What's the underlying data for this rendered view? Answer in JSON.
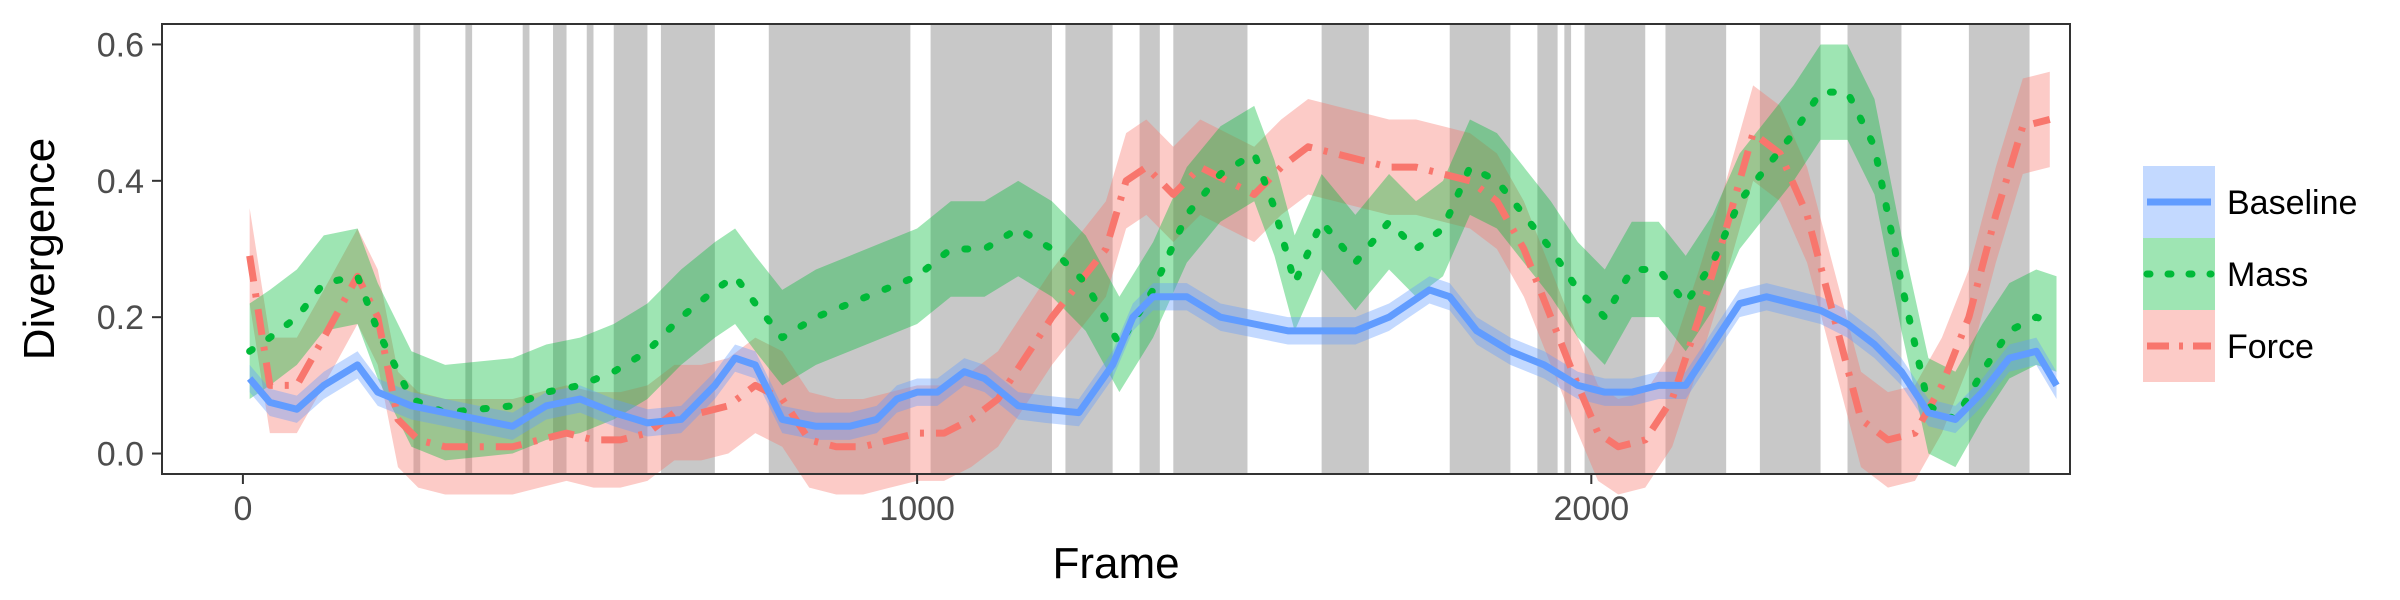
{
  "chart_data": {
    "type": "line",
    "title": "",
    "xlabel": "Frame",
    "ylabel": "Divergence",
    "xlim": [
      -120,
      2710
    ],
    "ylim": [
      -0.03,
      0.63
    ],
    "xticks": [
      0,
      1000,
      2000
    ],
    "xtick_labels": [
      "0",
      "1000",
      "2000"
    ],
    "yticks": [
      0.0,
      0.2,
      0.4,
      0.6
    ],
    "ytick_labels": [
      "0.0",
      "0.2",
      "0.4",
      "0.6"
    ],
    "grid": false,
    "legend_position": "right",
    "shaded_intervals": [
      [
        253,
        263
      ],
      [
        330,
        340
      ],
      [
        415,
        425
      ],
      [
        460,
        480
      ],
      [
        510,
        520
      ],
      [
        550,
        600
      ],
      [
        620,
        700
      ],
      [
        780,
        990
      ],
      [
        1020,
        1200
      ],
      [
        1220,
        1290
      ],
      [
        1330,
        1360
      ],
      [
        1380,
        1490
      ],
      [
        1600,
        1670
      ],
      [
        1790,
        1880
      ],
      [
        1920,
        1950
      ],
      [
        1960,
        1970
      ],
      [
        1990,
        2080
      ],
      [
        2110,
        2200
      ],
      [
        2250,
        2340
      ],
      [
        2380,
        2460
      ],
      [
        2560,
        2650
      ]
    ],
    "series": [
      {
        "name": "Baseline",
        "color": "#619CFF",
        "band_color": "#619CFF",
        "line_style": "solid",
        "x": [
          10,
          40,
          80,
          120,
          170,
          200,
          250,
          300,
          350,
          400,
          450,
          500,
          550,
          600,
          650,
          700,
          730,
          760,
          800,
          850,
          900,
          940,
          970,
          1000,
          1030,
          1070,
          1100,
          1150,
          1190,
          1240,
          1290,
          1320,
          1350,
          1400,
          1450,
          1500,
          1550,
          1600,
          1650,
          1700,
          1730,
          1760,
          1790,
          1830,
          1880,
          1930,
          1980,
          2020,
          2060,
          2100,
          2140,
          2180,
          2220,
          2260,
          2300,
          2340,
          2380,
          2420,
          2460,
          2500,
          2540,
          2580,
          2620,
          2660,
          2690
        ],
        "y": [
          0.11,
          0.075,
          0.065,
          0.1,
          0.13,
          0.09,
          0.07,
          0.06,
          0.05,
          0.04,
          0.07,
          0.08,
          0.06,
          0.045,
          0.05,
          0.1,
          0.14,
          0.13,
          0.05,
          0.04,
          0.04,
          0.05,
          0.08,
          0.09,
          0.09,
          0.12,
          0.11,
          0.07,
          0.065,
          0.06,
          0.13,
          0.2,
          0.23,
          0.23,
          0.2,
          0.19,
          0.18,
          0.18,
          0.18,
          0.2,
          0.22,
          0.24,
          0.23,
          0.18,
          0.15,
          0.13,
          0.1,
          0.09,
          0.09,
          0.1,
          0.1,
          0.16,
          0.22,
          0.23,
          0.22,
          0.21,
          0.19,
          0.16,
          0.12,
          0.06,
          0.05,
          0.09,
          0.14,
          0.15,
          0.1
        ],
        "band": 0.02
      },
      {
        "name": "Mass",
        "color": "#00BA38",
        "band_color": "#00BA38",
        "line_style": "dotted",
        "x": [
          10,
          40,
          80,
          120,
          170,
          200,
          250,
          300,
          350,
          400,
          450,
          500,
          550,
          600,
          650,
          700,
          730,
          760,
          800,
          850,
          900,
          950,
          1000,
          1050,
          1100,
          1150,
          1200,
          1250,
          1300,
          1350,
          1400,
          1450,
          1500,
          1530,
          1560,
          1600,
          1650,
          1700,
          1740,
          1780,
          1820,
          1860,
          1900,
          1940,
          1980,
          2020,
          2060,
          2100,
          2140,
          2180,
          2220,
          2260,
          2300,
          2340,
          2380,
          2420,
          2460,
          2500,
          2540,
          2580,
          2620,
          2660,
          2690
        ],
        "y": [
          0.15,
          0.17,
          0.2,
          0.25,
          0.26,
          0.18,
          0.08,
          0.06,
          0.065,
          0.07,
          0.09,
          0.1,
          0.12,
          0.15,
          0.2,
          0.24,
          0.26,
          0.22,
          0.17,
          0.2,
          0.22,
          0.24,
          0.26,
          0.3,
          0.3,
          0.33,
          0.3,
          0.25,
          0.16,
          0.24,
          0.35,
          0.41,
          0.44,
          0.36,
          0.25,
          0.34,
          0.28,
          0.34,
          0.3,
          0.33,
          0.42,
          0.4,
          0.35,
          0.3,
          0.24,
          0.2,
          0.27,
          0.27,
          0.22,
          0.28,
          0.37,
          0.42,
          0.47,
          0.53,
          0.53,
          0.45,
          0.25,
          0.07,
          0.05,
          0.12,
          0.18,
          0.2,
          0.19
        ],
        "band": 0.07
      },
      {
        "name": "Force",
        "color": "#F8766D",
        "band_color": "#F8766D",
        "line_style": "dashdot",
        "x": [
          10,
          40,
          80,
          120,
          170,
          200,
          230,
          260,
          300,
          350,
          400,
          440,
          480,
          520,
          560,
          600,
          640,
          680,
          720,
          760,
          800,
          840,
          880,
          920,
          960,
          1000,
          1040,
          1080,
          1120,
          1160,
          1200,
          1240,
          1280,
          1310,
          1340,
          1380,
          1420,
          1460,
          1500,
          1540,
          1580,
          1620,
          1660,
          1700,
          1740,
          1780,
          1820,
          1860,
          1900,
          1940,
          1980,
          2010,
          2040,
          2080,
          2120,
          2160,
          2200,
          2240,
          2280,
          2320,
          2360,
          2400,
          2440,
          2480,
          2520,
          2560,
          2600,
          2640,
          2680
        ],
        "y": [
          0.29,
          0.1,
          0.1,
          0.17,
          0.26,
          0.2,
          0.05,
          0.02,
          0.01,
          0.01,
          0.01,
          0.02,
          0.03,
          0.02,
          0.02,
          0.03,
          0.06,
          0.06,
          0.07,
          0.1,
          0.08,
          0.02,
          0.01,
          0.01,
          0.02,
          0.03,
          0.03,
          0.05,
          0.08,
          0.14,
          0.2,
          0.25,
          0.3,
          0.4,
          0.42,
          0.38,
          0.42,
          0.4,
          0.38,
          0.42,
          0.45,
          0.44,
          0.43,
          0.42,
          0.42,
          0.41,
          0.4,
          0.37,
          0.3,
          0.2,
          0.1,
          0.03,
          0.01,
          0.02,
          0.08,
          0.2,
          0.33,
          0.47,
          0.44,
          0.35,
          0.2,
          0.05,
          0.02,
          0.03,
          0.1,
          0.2,
          0.35,
          0.48,
          0.49
        ],
        "band": 0.07
      }
    ]
  }
}
